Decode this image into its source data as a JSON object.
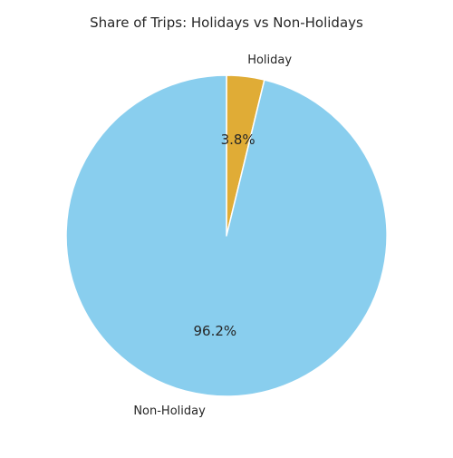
{
  "chart_data": {
    "type": "pie",
    "title": "Share of Trips: Holidays vs Non-Holidays",
    "slices": [
      {
        "label": "Holiday",
        "value": 3.8,
        "pct_label": "3.8%",
        "color": "#e0ac36"
      },
      {
        "label": "Non-Holiday",
        "value": 96.2,
        "pct_label": "96.2%",
        "color": "#89ceee"
      }
    ],
    "start_angle_deg": 90,
    "direction": "clockwise",
    "edge_color": "#ffffff",
    "legend": "none"
  }
}
